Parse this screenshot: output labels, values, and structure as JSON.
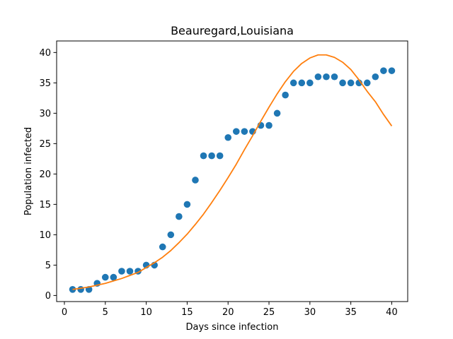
{
  "chart_data": {
    "type": "scatter",
    "title": "Beauregard,Louisiana",
    "xlabel": "Days since infection",
    "ylabel": "Population infected",
    "xlim": [
      -0.95,
      41.95
    ],
    "ylim": [
      -1.0,
      41.9
    ],
    "xticks": [
      0,
      5,
      10,
      15,
      20,
      25,
      30,
      35,
      40
    ],
    "yticks": [
      0,
      5,
      10,
      15,
      20,
      25,
      30,
      35,
      40
    ],
    "grid": false,
    "legend": "none",
    "series": [
      {
        "kind": "scatter",
        "color": "#1f77b4",
        "x": [
          1,
          2,
          3,
          4,
          5,
          6,
          7,
          8,
          9,
          10,
          11,
          12,
          13,
          14,
          15,
          16,
          17,
          18,
          19,
          20,
          21,
          22,
          23,
          24,
          25,
          26,
          27,
          28,
          29,
          30,
          31,
          32,
          33,
          34,
          35,
          36,
          37,
          38,
          39,
          40
        ],
        "y": [
          1,
          1,
          1,
          2,
          3,
          3,
          4,
          4,
          4,
          5,
          5,
          8,
          10,
          13,
          15,
          19,
          23,
          23,
          23,
          26,
          27,
          27,
          27,
          28,
          28,
          30,
          33,
          35,
          35,
          35,
          36,
          36,
          36,
          35,
          35,
          35,
          35,
          36,
          37,
          37
        ]
      },
      {
        "kind": "line",
        "color": "#ff7f0e",
        "x": [
          1,
          2,
          3,
          4,
          5,
          6,
          7,
          8,
          9,
          10,
          11,
          12,
          13,
          14,
          15,
          16,
          17,
          18,
          19,
          20,
          21,
          22,
          23,
          24,
          25,
          26,
          27,
          28,
          29,
          30,
          31,
          32,
          33,
          34,
          35,
          36,
          37,
          38,
          39,
          40
        ],
        "y": [
          1.0,
          1.2,
          1.4,
          1.7,
          2.0,
          2.4,
          2.8,
          3.3,
          3.8,
          4.6,
          5.4,
          6.3,
          7.4,
          8.7,
          10.1,
          11.7,
          13.4,
          15.3,
          17.3,
          19.4,
          21.6,
          24.0,
          26.3,
          28.7,
          31.0,
          33.2,
          35.2,
          36.9,
          38.2,
          39.1,
          39.6,
          39.6,
          39.2,
          38.4,
          37.2,
          35.5,
          33.6,
          31.9,
          29.8,
          27.9
        ]
      }
    ]
  }
}
